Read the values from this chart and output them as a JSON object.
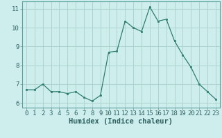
{
  "x": [
    0,
    1,
    2,
    3,
    4,
    5,
    6,
    7,
    8,
    9,
    10,
    11,
    12,
    13,
    14,
    15,
    16,
    17,
    18,
    19,
    20,
    21,
    22,
    23
  ],
  "y": [
    6.7,
    6.7,
    7.0,
    6.6,
    6.6,
    6.5,
    6.6,
    6.3,
    6.1,
    6.4,
    8.7,
    8.75,
    10.35,
    10.0,
    9.8,
    11.1,
    10.35,
    10.45,
    9.3,
    8.55,
    7.9,
    7.0,
    6.6,
    6.2
  ],
  "line_color": "#2e7d6e",
  "marker_color": "#2e7d6e",
  "bg_color": "#ceeeed",
  "grid_color": "#aed4d0",
  "xlabel": "Humidex (Indice chaleur)",
  "xlim": [
    -0.5,
    23.5
  ],
  "ylim": [
    5.75,
    11.4
  ],
  "yticks": [
    6,
    7,
    8,
    9,
    10,
    11
  ],
  "xticks": [
    0,
    1,
    2,
    3,
    4,
    5,
    6,
    7,
    8,
    9,
    10,
    11,
    12,
    13,
    14,
    15,
    16,
    17,
    18,
    19,
    20,
    21,
    22,
    23
  ],
  "tick_label_fontsize": 6.5,
  "xlabel_fontsize": 7.5
}
